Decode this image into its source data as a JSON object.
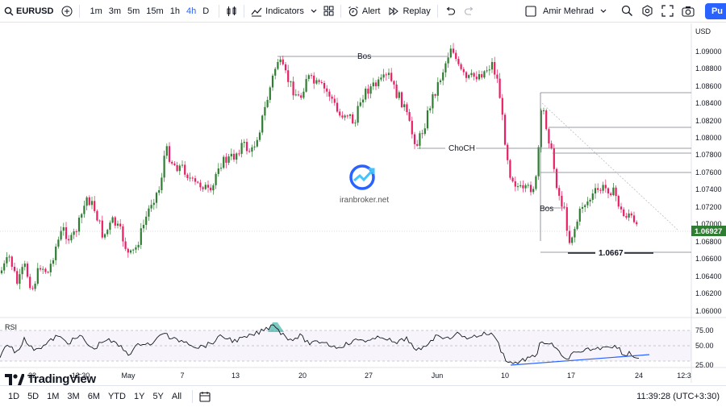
{
  "toolbar": {
    "symbol": "EURUSD",
    "timeframes": [
      "1m",
      "3m",
      "5m",
      "15m",
      "1h",
      "4h",
      "D"
    ],
    "active_timeframe": "4h",
    "indicators_label": "Indicators",
    "alert_label": "Alert",
    "replay_label": "Replay",
    "user_name": "Amir Mehrad",
    "publish_label": "Pu"
  },
  "chart": {
    "currency": "USD",
    "price_axis": [
      "1.09000",
      "1.08800",
      "1.08600",
      "1.08400",
      "1.08200",
      "1.08000",
      "1.07800",
      "1.07600",
      "1.07400",
      "1.07200",
      "1.07000",
      "1.06800",
      "1.06600",
      "1.06400",
      "1.06200",
      "1.06000"
    ],
    "current_price": "1.06927",
    "annotations": {
      "bos_top": "Bos",
      "choch": "ChoCH",
      "bos_low": "Bos",
      "level": "1.0667"
    },
    "watermark": "iranbroker.net",
    "rsi_label": "RSI",
    "rsi_axis": [
      "75.00",
      "50.00",
      "25.00"
    ],
    "time_axis": [
      "22",
      "12:30",
      "May",
      "7",
      "13",
      "20",
      "27",
      "Jun",
      "10",
      "17",
      "24",
      "12:3"
    ],
    "logo_text": "TradingView",
    "colors": {
      "up": "#26a69a",
      "down": "#ef5350",
      "candle_up": "#2e7d32",
      "candle_down": "#e91e63",
      "accent": "#2962ff"
    }
  },
  "bottombar": {
    "ranges": [
      "1D",
      "5D",
      "1M",
      "3M",
      "6M",
      "YTD",
      "1Y",
      "5Y",
      "All"
    ],
    "clock": "11:39:28 (UTC+3:30)"
  }
}
